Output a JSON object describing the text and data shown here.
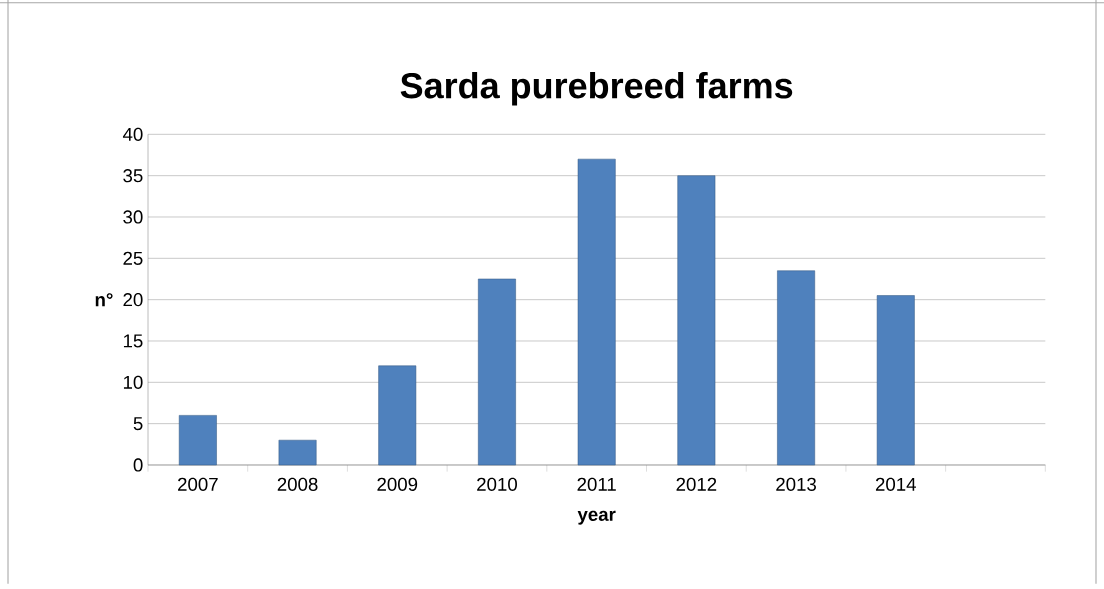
{
  "chart_data": {
    "type": "bar",
    "title": "Sarda purebreed farms",
    "xlabel": "year",
    "ylabel": "n°",
    "categories": [
      "2007",
      "2008",
      "2009",
      "2010",
      "2011",
      "2012",
      "2013",
      "2014",
      null
    ],
    "values": [
      6,
      3,
      12,
      22.5,
      37,
      35,
      23.5,
      20.5,
      null
    ],
    "color": "#4f81bd",
    "ylim": [
      0,
      40
    ],
    "yticks": [
      0,
      5,
      10,
      15,
      20,
      25,
      30,
      35,
      40
    ],
    "grid": "y"
  }
}
